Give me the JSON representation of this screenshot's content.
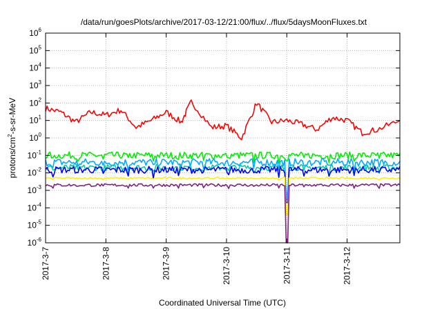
{
  "chart_data": {
    "type": "line",
    "title": "/data/run/goesPlots/archive/2017-03-12/21:00/flux/../flux/5daysMoonFluxes.txt",
    "xlabel": "Coordinated Universal Time (UTC)",
    "ylabel": {
      "prefix": "protons/cm",
      "sup": "2",
      "suffix": "-s-sr-MeV"
    },
    "xlim": [
      "2017-03-07",
      "2017-03-12 21:00"
    ],
    "x_ticks": [
      "2017-3-7",
      "2017-3-8",
      "2017-3-9",
      "2017-3-10",
      "2017-3-11",
      "2017-3-12"
    ],
    "yscale": "log",
    "ylim": [
      1e-06,
      1000000.0
    ],
    "y_ticks": [
      {
        "base": "10",
        "exp": "-6"
      },
      {
        "base": "10",
        "exp": "-5"
      },
      {
        "base": "10",
        "exp": "-4"
      },
      {
        "base": "10",
        "exp": "-3"
      },
      {
        "base": "10",
        "exp": "-2"
      },
      {
        "base": "10",
        "exp": "-1"
      },
      {
        "base": "10",
        "exp": "0"
      },
      {
        "base": "10",
        "exp": "1"
      },
      {
        "base": "10",
        "exp": "2"
      },
      {
        "base": "10",
        "exp": "3"
      },
      {
        "base": "10",
        "exp": "4"
      },
      {
        "base": "10",
        "exp": "5"
      },
      {
        "base": "10",
        "exp": "6"
      }
    ],
    "grid": true,
    "legend": "none",
    "series": [
      {
        "color": "#ff0000",
        "base": 15,
        "amp": 0.5,
        "dip": 0.5,
        "points": [
          [
            "2017-03-07 00:00",
            50
          ],
          [
            "2017-03-07 06:00",
            30
          ],
          [
            "2017-03-07 12:00",
            8
          ],
          [
            "2017-03-07 18:00",
            30
          ],
          [
            "2017-03-08 00:00",
            20
          ],
          [
            "2017-03-08 06:00",
            40
          ],
          [
            "2017-03-08 12:00",
            4
          ],
          [
            "2017-03-08 18:00",
            10
          ],
          [
            "2017-03-09 00:00",
            30
          ],
          [
            "2017-03-09 06:00",
            8
          ],
          [
            "2017-03-09 10:00",
            120
          ],
          [
            "2017-03-09 18:00",
            4
          ],
          [
            "2017-03-10 00:00",
            5
          ],
          [
            "2017-03-10 06:00",
            1
          ],
          [
            "2017-03-10 12:00",
            100
          ],
          [
            "2017-03-10 18:00",
            8
          ],
          [
            "2017-03-11 00:00",
            10
          ],
          [
            "2017-03-11 06:00",
            6
          ],
          [
            "2017-03-11 12:00",
            3
          ],
          [
            "2017-03-11 18:00",
            15
          ],
          [
            "2017-03-12 00:00",
            10
          ],
          [
            "2017-03-12 06:00",
            2
          ],
          [
            "2017-03-12 12:00",
            3
          ],
          [
            "2017-03-12 21:00",
            10
          ]
        ]
      },
      {
        "color": "#00ee00",
        "base": 0.1,
        "amp": 0.2,
        "dip": 0.05,
        "points": []
      },
      {
        "color": "#00aaff",
        "base": 0.04,
        "amp": 0.22,
        "dip": 0.0003,
        "points": []
      },
      {
        "color": "#00ccaa",
        "base": 0.02,
        "amp": 0.18,
        "dip": 0.0002,
        "points": []
      },
      {
        "color": "#0000ff",
        "base": 0.015,
        "amp": 0.2,
        "dip": 0.0002,
        "points": []
      },
      {
        "color": "#ffee00",
        "base": 0.005,
        "amp": 0.05,
        "dip": 4e-05,
        "points": []
      },
      {
        "color": "#7f1f7f",
        "base": 0.002,
        "amp": 0.08,
        "dip": 1e-06,
        "points": []
      }
    ]
  }
}
